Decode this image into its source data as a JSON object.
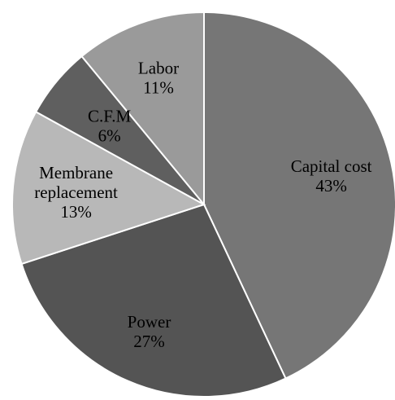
{
  "chart_data": {
    "type": "pie",
    "categories": [
      "Capital cost",
      "Power",
      "Membrane replacement",
      "C.F.M",
      "Labor"
    ],
    "values": [
      43,
      27,
      13,
      6,
      11
    ],
    "value_labels": [
      "43%",
      "27%",
      "13%",
      "6%",
      "11%"
    ],
    "start_angle": "12 o'clock",
    "direction": "clockwise",
    "legend": "none",
    "slice_colors": [
      "#767676",
      "#545454",
      "#b8b8b8",
      "#5f5f5f",
      "#9a9a9a"
    ],
    "label_lines": [
      [
        "Capital cost"
      ],
      [
        "Power"
      ],
      [
        "Membrane",
        "replacement"
      ],
      [
        "C.F.M"
      ],
      [
        "Labor"
      ]
    ]
  }
}
